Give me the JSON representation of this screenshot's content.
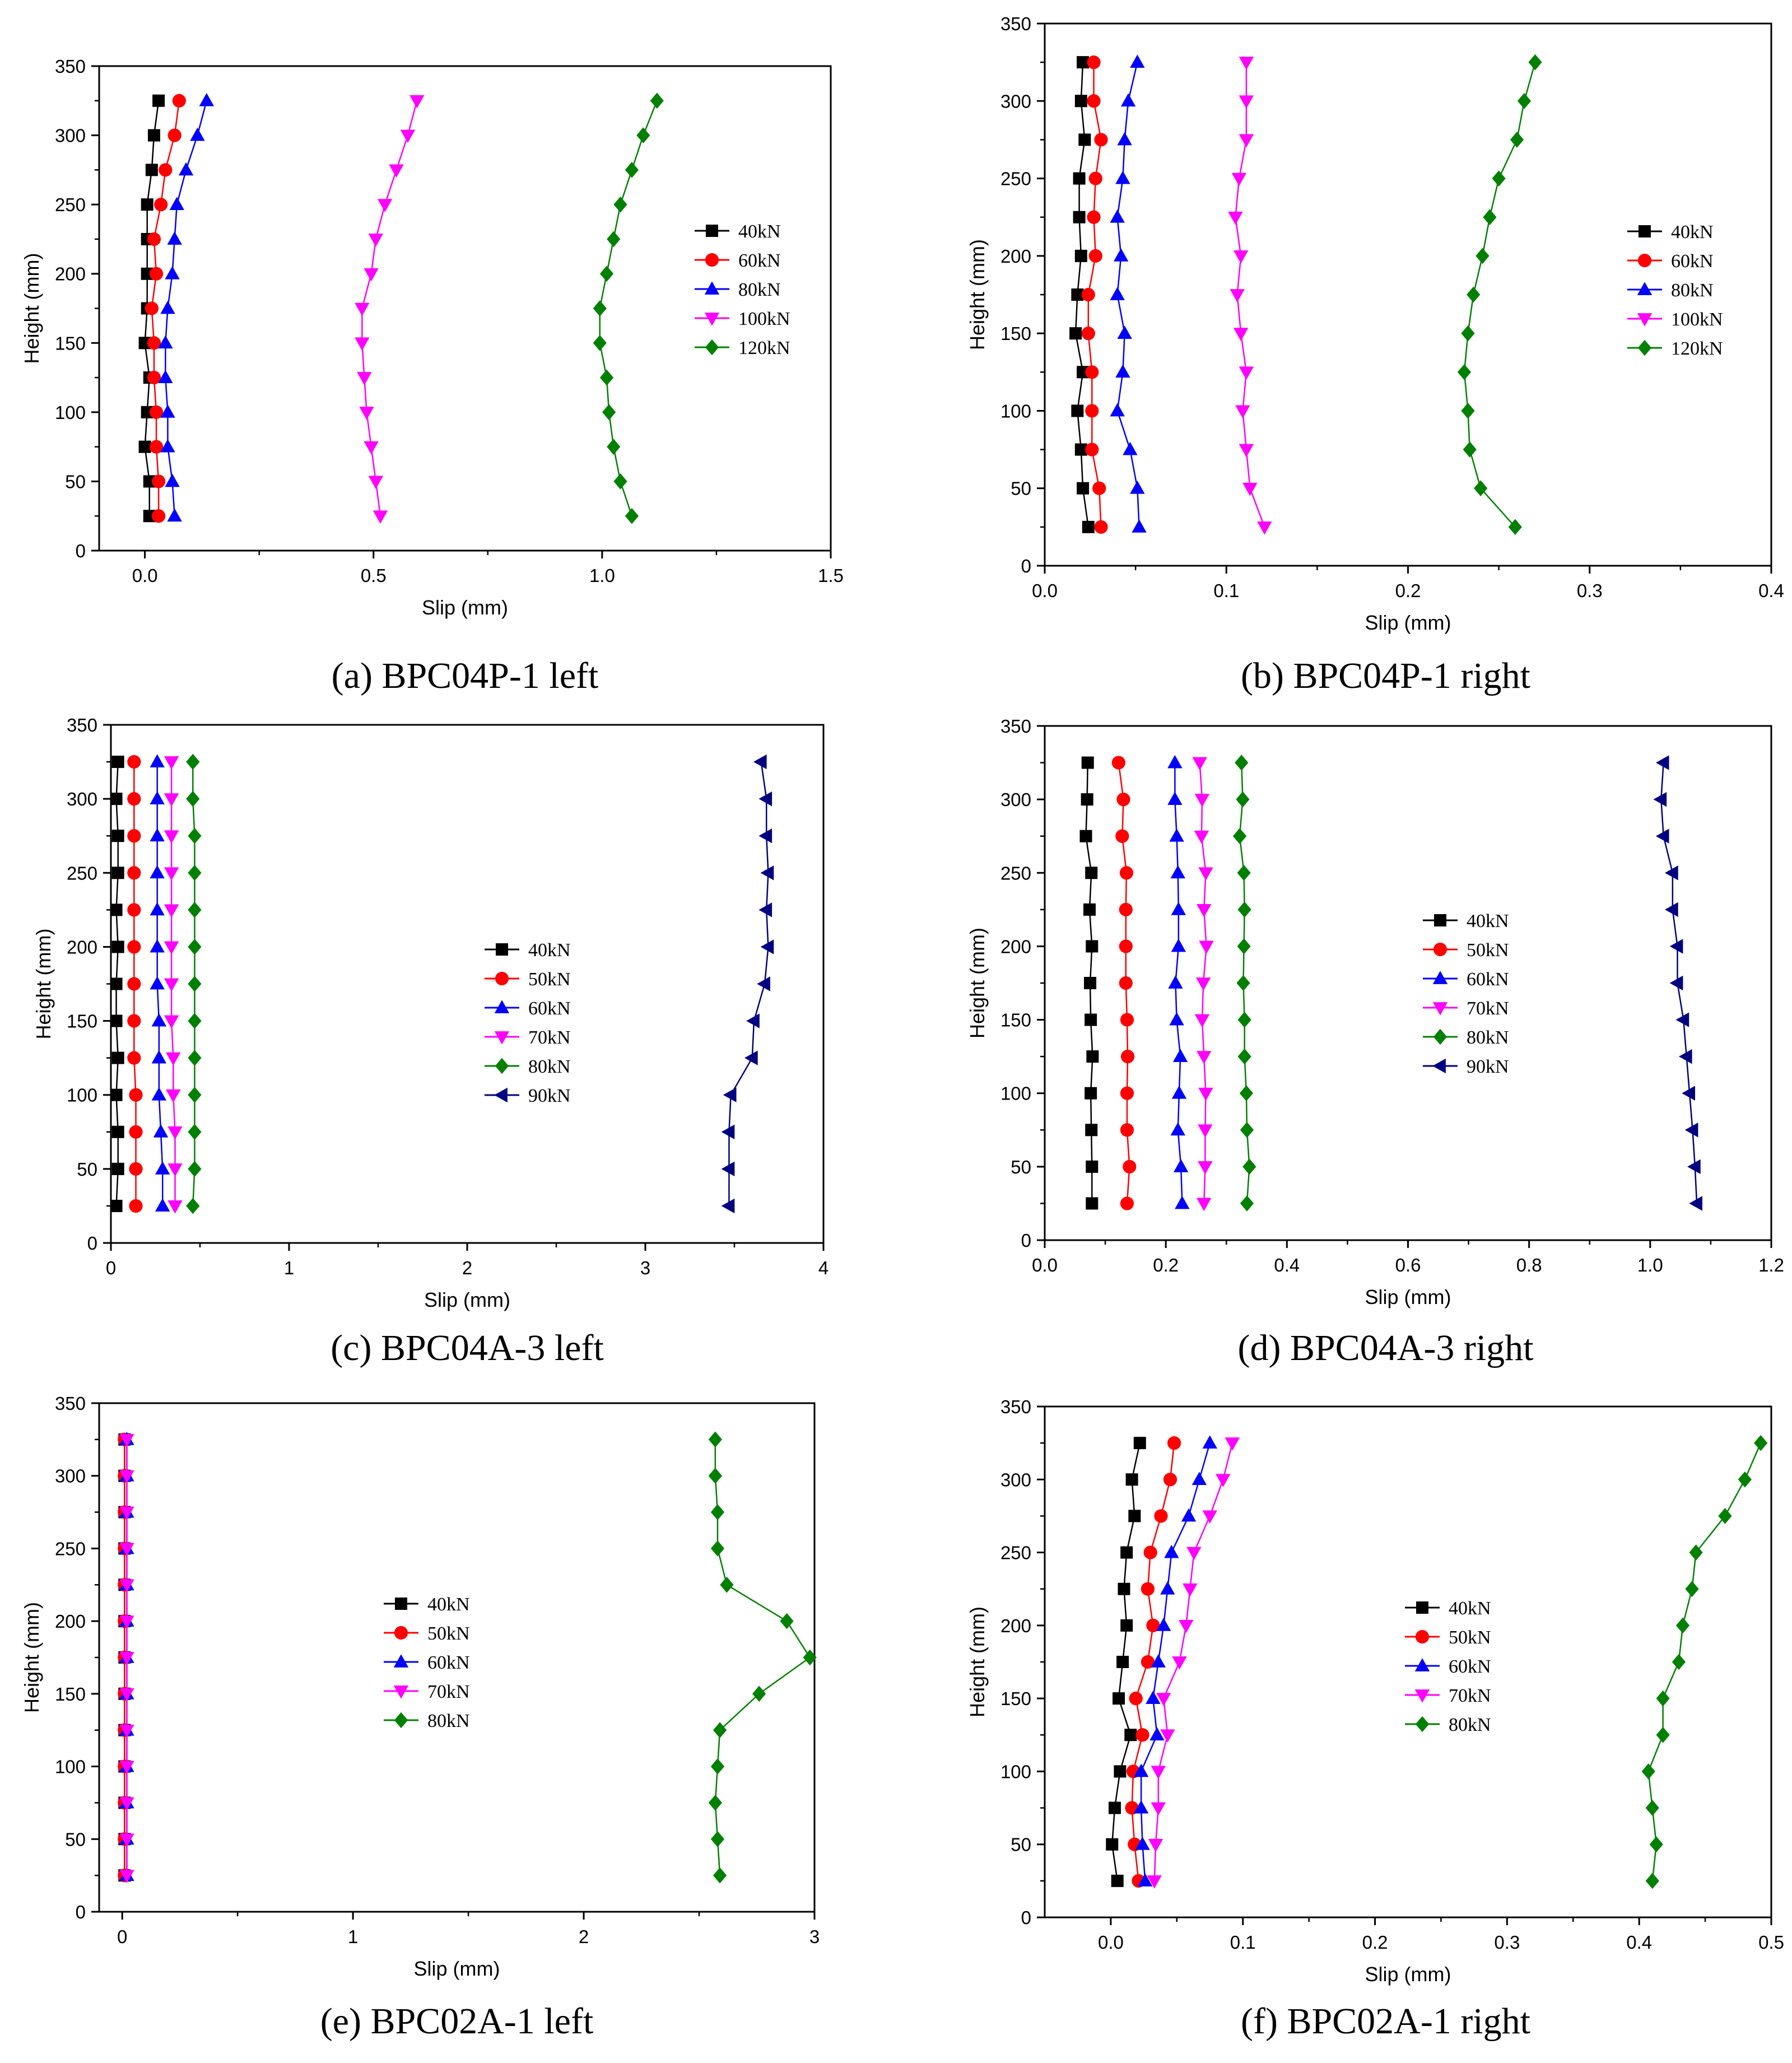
{
  "chart_data": [
    {
      "type": "line",
      "caption_label": "(a)",
      "caption_text": " BPC04P-1 left",
      "xlabel": "Slip (mm)",
      "ylabel": "Height (mm)",
      "xlim": [
        -0.1,
        1.5
      ],
      "ylim": [
        0,
        350
      ],
      "xticks": [
        0,
        0.5,
        1,
        1.5
      ],
      "xtick_labels": [
        "0.0",
        "0.5",
        "1.0",
        "1.5"
      ],
      "yticks": [
        0,
        50,
        100,
        150,
        200,
        250,
        300,
        350
      ],
      "legend_position": "right",
      "heights": [
        25,
        50,
        75,
        100,
        125,
        150,
        175,
        200,
        225,
        250,
        275,
        300,
        325
      ],
      "series": [
        {
          "name": "40kN",
          "color": "#000000",
          "marker": "square",
          "values": [
            0.01,
            0.01,
            0.0,
            0.005,
            0.01,
            0.0,
            0.005,
            0.005,
            0.005,
            0.005,
            0.015,
            0.02,
            0.03
          ]
        },
        {
          "name": "60kN",
          "color": "#ff0000",
          "marker": "circle",
          "values": [
            0.03,
            0.03,
            0.025,
            0.025,
            0.02,
            0.02,
            0.015,
            0.025,
            0.02,
            0.035,
            0.045,
            0.065,
            0.075
          ]
        },
        {
          "name": "80kN",
          "color": "#0000ff",
          "marker": "triangle-up",
          "values": [
            0.065,
            0.06,
            0.05,
            0.05,
            0.045,
            0.045,
            0.05,
            0.06,
            0.065,
            0.07,
            0.09,
            0.115,
            0.135
          ]
        },
        {
          "name": "100kN",
          "color": "#ff00ff",
          "marker": "triangle-down",
          "values": [
            0.515,
            0.505,
            0.495,
            0.485,
            0.48,
            0.475,
            0.475,
            0.495,
            0.505,
            0.525,
            0.55,
            0.575,
            0.595
          ]
        },
        {
          "name": "120kN",
          "color": "#008000",
          "marker": "diamond",
          "values": [
            1.065,
            1.04,
            1.025,
            1.015,
            1.01,
            0.995,
            0.995,
            1.01,
            1.025,
            1.04,
            1.065,
            1.09,
            1.12
          ]
        }
      ]
    },
    {
      "type": "line",
      "caption_label": "(b)",
      "caption_text": " BPC04P-1 right",
      "xlabel": "Slip (mm)",
      "ylabel": "Height (mm)",
      "xlim": [
        0,
        0.4
      ],
      "ylim": [
        0,
        350
      ],
      "xticks": [
        0,
        0.1,
        0.2,
        0.3,
        0.4
      ],
      "xtick_labels": [
        "0.0",
        "0.1",
        "0.2",
        "0.3",
        "0.4"
      ],
      "yticks": [
        0,
        50,
        100,
        150,
        200,
        250,
        300,
        350
      ],
      "legend_position": "right",
      "heights": [
        25,
        50,
        75,
        100,
        125,
        150,
        175,
        200,
        225,
        250,
        275,
        300,
        325
      ],
      "series": [
        {
          "name": "40kN",
          "color": "#000000",
          "marker": "square",
          "values": [
            0.024,
            0.021,
            0.02,
            0.018,
            0.021,
            0.017,
            0.018,
            0.02,
            0.019,
            0.019,
            0.022,
            0.02,
            0.021
          ]
        },
        {
          "name": "60kN",
          "color": "#ff0000",
          "marker": "circle",
          "values": [
            0.031,
            0.03,
            0.026,
            0.026,
            0.026,
            0.024,
            0.024,
            0.028,
            0.027,
            0.028,
            0.031,
            0.027,
            0.027
          ]
        },
        {
          "name": "80kN",
          "color": "#0000ff",
          "marker": "triangle-up",
          "values": [
            0.052,
            0.051,
            0.047,
            0.04,
            0.043,
            0.044,
            0.04,
            0.042,
            0.04,
            0.043,
            0.044,
            0.046,
            0.051
          ]
        },
        {
          "name": "100kN",
          "color": "#ff00ff",
          "marker": "triangle-down",
          "values": [
            0.121,
            0.113,
            0.111,
            0.109,
            0.111,
            0.108,
            0.106,
            0.108,
            0.105,
            0.107,
            0.111,
            0.111,
            0.111
          ]
        },
        {
          "name": "120kN",
          "color": "#008000",
          "marker": "diamond",
          "values": [
            0.259,
            0.24,
            0.234,
            0.233,
            0.231,
            0.233,
            0.236,
            0.241,
            0.245,
            0.25,
            0.26,
            0.264,
            0.27
          ]
        }
      ]
    },
    {
      "type": "line",
      "caption_label": "(c)",
      "caption_text": " BPC04A-3 left",
      "xlabel": "Slip (mm)",
      "ylabel": "Height (mm)",
      "xlim": [
        0,
        4
      ],
      "ylim": [
        0,
        350
      ],
      "xticks": [
        0,
        1,
        2,
        3,
        4
      ],
      "xtick_labels": [
        "0",
        "1",
        "2",
        "3",
        "4"
      ],
      "yticks": [
        0,
        50,
        100,
        150,
        200,
        250,
        300,
        350
      ],
      "legend_position": "center",
      "heights": [
        25,
        50,
        75,
        100,
        125,
        150,
        175,
        200,
        225,
        250,
        275,
        300,
        325
      ],
      "series": [
        {
          "name": "40kN",
          "color": "#000000",
          "marker": "square",
          "values": [
            0.03,
            0.04,
            0.04,
            0.03,
            0.04,
            0.03,
            0.03,
            0.04,
            0.03,
            0.04,
            0.04,
            0.03,
            0.04
          ]
        },
        {
          "name": "50kN",
          "color": "#ff0000",
          "marker": "circle",
          "values": [
            0.14,
            0.14,
            0.14,
            0.14,
            0.13,
            0.13,
            0.13,
            0.13,
            0.13,
            0.13,
            0.13,
            0.13,
            0.13
          ]
        },
        {
          "name": "60kN",
          "color": "#0000ff",
          "marker": "triangle-up",
          "values": [
            0.29,
            0.29,
            0.28,
            0.27,
            0.27,
            0.27,
            0.26,
            0.26,
            0.26,
            0.26,
            0.26,
            0.26,
            0.26
          ]
        },
        {
          "name": "70kN",
          "color": "#ff00ff",
          "marker": "triangle-down",
          "values": [
            0.36,
            0.36,
            0.36,
            0.35,
            0.35,
            0.34,
            0.34,
            0.34,
            0.34,
            0.34,
            0.34,
            0.34,
            0.34
          ]
        },
        {
          "name": "80kN",
          "color": "#008000",
          "marker": "diamond",
          "values": [
            0.46,
            0.47,
            0.47,
            0.47,
            0.47,
            0.47,
            0.47,
            0.47,
            0.47,
            0.47,
            0.47,
            0.46,
            0.46
          ]
        },
        {
          "name": "90kN",
          "color": "#000080",
          "marker": "triangle-left",
          "values": [
            3.47,
            3.47,
            3.47,
            3.48,
            3.6,
            3.61,
            3.67,
            3.69,
            3.68,
            3.69,
            3.68,
            3.68,
            3.65
          ]
        }
      ]
    },
    {
      "type": "line",
      "caption_label": "(d)",
      "caption_text": " BPC04A-3 right",
      "xlabel": "Slip (mm)",
      "ylabel": "Height (mm)",
      "xlim": [
        0,
        1.2
      ],
      "ylim": [
        0,
        350
      ],
      "xticks": [
        0,
        0.2,
        0.4,
        0.6,
        0.8,
        1.0,
        1.2
      ],
      "xtick_labels": [
        "0.0",
        "0.2",
        "0.4",
        "0.6",
        "0.8",
        "1.0",
        "1.2"
      ],
      "yticks": [
        0,
        50,
        100,
        150,
        200,
        250,
        300,
        350
      ],
      "legend_position": "center",
      "heights": [
        25,
        50,
        75,
        100,
        125,
        150,
        175,
        200,
        225,
        250,
        275,
        300,
        325
      ],
      "series": [
        {
          "name": "40kN",
          "color": "#000000",
          "marker": "square",
          "values": [
            0.078,
            0.078,
            0.077,
            0.076,
            0.079,
            0.076,
            0.075,
            0.078,
            0.074,
            0.077,
            0.068,
            0.07,
            0.071
          ]
        },
        {
          "name": "50kN",
          "color": "#ff0000",
          "marker": "circle",
          "values": [
            0.136,
            0.14,
            0.136,
            0.136,
            0.137,
            0.136,
            0.134,
            0.134,
            0.134,
            0.135,
            0.128,
            0.13,
            0.122
          ]
        },
        {
          "name": "60kN",
          "color": "#0000ff",
          "marker": "triangle-up",
          "values": [
            0.227,
            0.225,
            0.22,
            0.222,
            0.224,
            0.218,
            0.216,
            0.221,
            0.221,
            0.22,
            0.218,
            0.215,
            0.215
          ]
        },
        {
          "name": "70kN",
          "color": "#ff00ff",
          "marker": "triangle-down",
          "values": [
            0.263,
            0.265,
            0.265,
            0.266,
            0.263,
            0.26,
            0.262,
            0.267,
            0.263,
            0.266,
            0.259,
            0.26,
            0.256
          ]
        },
        {
          "name": "80kN",
          "color": "#008000",
          "marker": "diamond",
          "values": [
            0.334,
            0.338,
            0.334,
            0.333,
            0.33,
            0.33,
            0.328,
            0.329,
            0.33,
            0.329,
            0.322,
            0.327,
            0.325
          ]
        },
        {
          "name": "90kN",
          "color": "#000080",
          "marker": "triangle-left",
          "values": [
            1.077,
            1.074,
            1.07,
            1.065,
            1.06,
            1.055,
            1.045,
            1.045,
            1.037,
            1.037,
            1.022,
            1.018,
            1.022
          ]
        }
      ]
    },
    {
      "type": "line",
      "caption_label": "(e)",
      "caption_text": " BPC02A-1 left",
      "xlabel": "Slip (mm)",
      "ylabel": "Height (mm)",
      "xlim": [
        -0.1,
        3
      ],
      "ylim": [
        0,
        350
      ],
      "xticks": [
        0,
        1,
        2,
        3
      ],
      "xtick_labels": [
        "0",
        "1",
        "2",
        "3"
      ],
      "yticks": [
        0,
        50,
        100,
        150,
        200,
        250,
        300,
        350
      ],
      "legend_position": "center",
      "heights": [
        25,
        50,
        75,
        100,
        125,
        150,
        175,
        200,
        225,
        250,
        275,
        300,
        325
      ],
      "series": [
        {
          "name": "40kN",
          "color": "#000000",
          "marker": "square",
          "values": [
            0.01,
            0.01,
            0.01,
            0.01,
            0.01,
            0.01,
            0.01,
            0.01,
            0.01,
            0.01,
            0.01,
            0.01,
            0.01
          ]
        },
        {
          "name": "50kN",
          "color": "#ff0000",
          "marker": "circle",
          "values": [
            0.01,
            0.01,
            0.01,
            0.01,
            0.01,
            0.01,
            0.01,
            0.01,
            0.01,
            0.01,
            0.01,
            0.01,
            0.01
          ]
        },
        {
          "name": "60kN",
          "color": "#0000ff",
          "marker": "triangle-up",
          "values": [
            0.02,
            0.02,
            0.02,
            0.02,
            0.02,
            0.02,
            0.02,
            0.02,
            0.02,
            0.02,
            0.02,
            0.02,
            0.02
          ]
        },
        {
          "name": "70kN",
          "color": "#ff00ff",
          "marker": "triangle-down",
          "values": [
            0.02,
            0.02,
            0.02,
            0.02,
            0.02,
            0.02,
            0.02,
            0.02,
            0.02,
            0.02,
            0.02,
            0.02,
            0.02
          ]
        },
        {
          "name": "80kN",
          "color": "#008000",
          "marker": "diamond",
          "values": [
            2.59,
            2.58,
            2.57,
            2.58,
            2.59,
            2.76,
            2.98,
            2.88,
            2.62,
            2.58,
            2.58,
            2.57,
            2.57
          ]
        }
      ]
    },
    {
      "type": "line",
      "caption_label": "(f)",
      "caption_text": " BPC02A-1 right",
      "xlabel": "Slip (mm)",
      "ylabel": "Height (mm)",
      "xlim": [
        -0.05,
        0.5
      ],
      "ylim": [
        0,
        350
      ],
      "xticks": [
        0,
        0.1,
        0.2,
        0.3,
        0.4,
        0.5
      ],
      "xtick_labels": [
        "0.0",
        "0.1",
        "0.2",
        "0.3",
        "0.4",
        "0.5"
      ],
      "yticks": [
        0,
        50,
        100,
        150,
        200,
        250,
        300,
        350
      ],
      "legend_position": "center",
      "heights": [
        25,
        50,
        75,
        100,
        125,
        150,
        175,
        200,
        225,
        250,
        275,
        300,
        325
      ],
      "series": [
        {
          "name": "40kN",
          "color": "#000000",
          "marker": "square",
          "values": [
            0.005,
            0.001,
            0.003,
            0.007,
            0.015,
            0.006,
            0.009,
            0.012,
            0.01,
            0.012,
            0.018,
            0.016,
            0.022
          ]
        },
        {
          "name": "50kN",
          "color": "#ff0000",
          "marker": "circle",
          "values": [
            0.021,
            0.018,
            0.016,
            0.017,
            0.024,
            0.019,
            0.028,
            0.032,
            0.028,
            0.03,
            0.038,
            0.045,
            0.048
          ]
        },
        {
          "name": "60kN",
          "color": "#0000ff",
          "marker": "triangle-up",
          "values": [
            0.026,
            0.024,
            0.023,
            0.023,
            0.035,
            0.032,
            0.036,
            0.04,
            0.043,
            0.046,
            0.059,
            0.067,
            0.075
          ]
        },
        {
          "name": "70kN",
          "color": "#ff00ff",
          "marker": "triangle-down",
          "values": [
            0.033,
            0.034,
            0.036,
            0.036,
            0.043,
            0.04,
            0.052,
            0.057,
            0.06,
            0.063,
            0.075,
            0.085,
            0.092
          ]
        },
        {
          "name": "80kN",
          "color": "#008000",
          "marker": "diamond",
          "values": [
            0.41,
            0.413,
            0.41,
            0.407,
            0.418,
            0.418,
            0.43,
            0.433,
            0.44,
            0.443,
            0.465,
            0.48,
            0.492
          ]
        }
      ]
    }
  ]
}
